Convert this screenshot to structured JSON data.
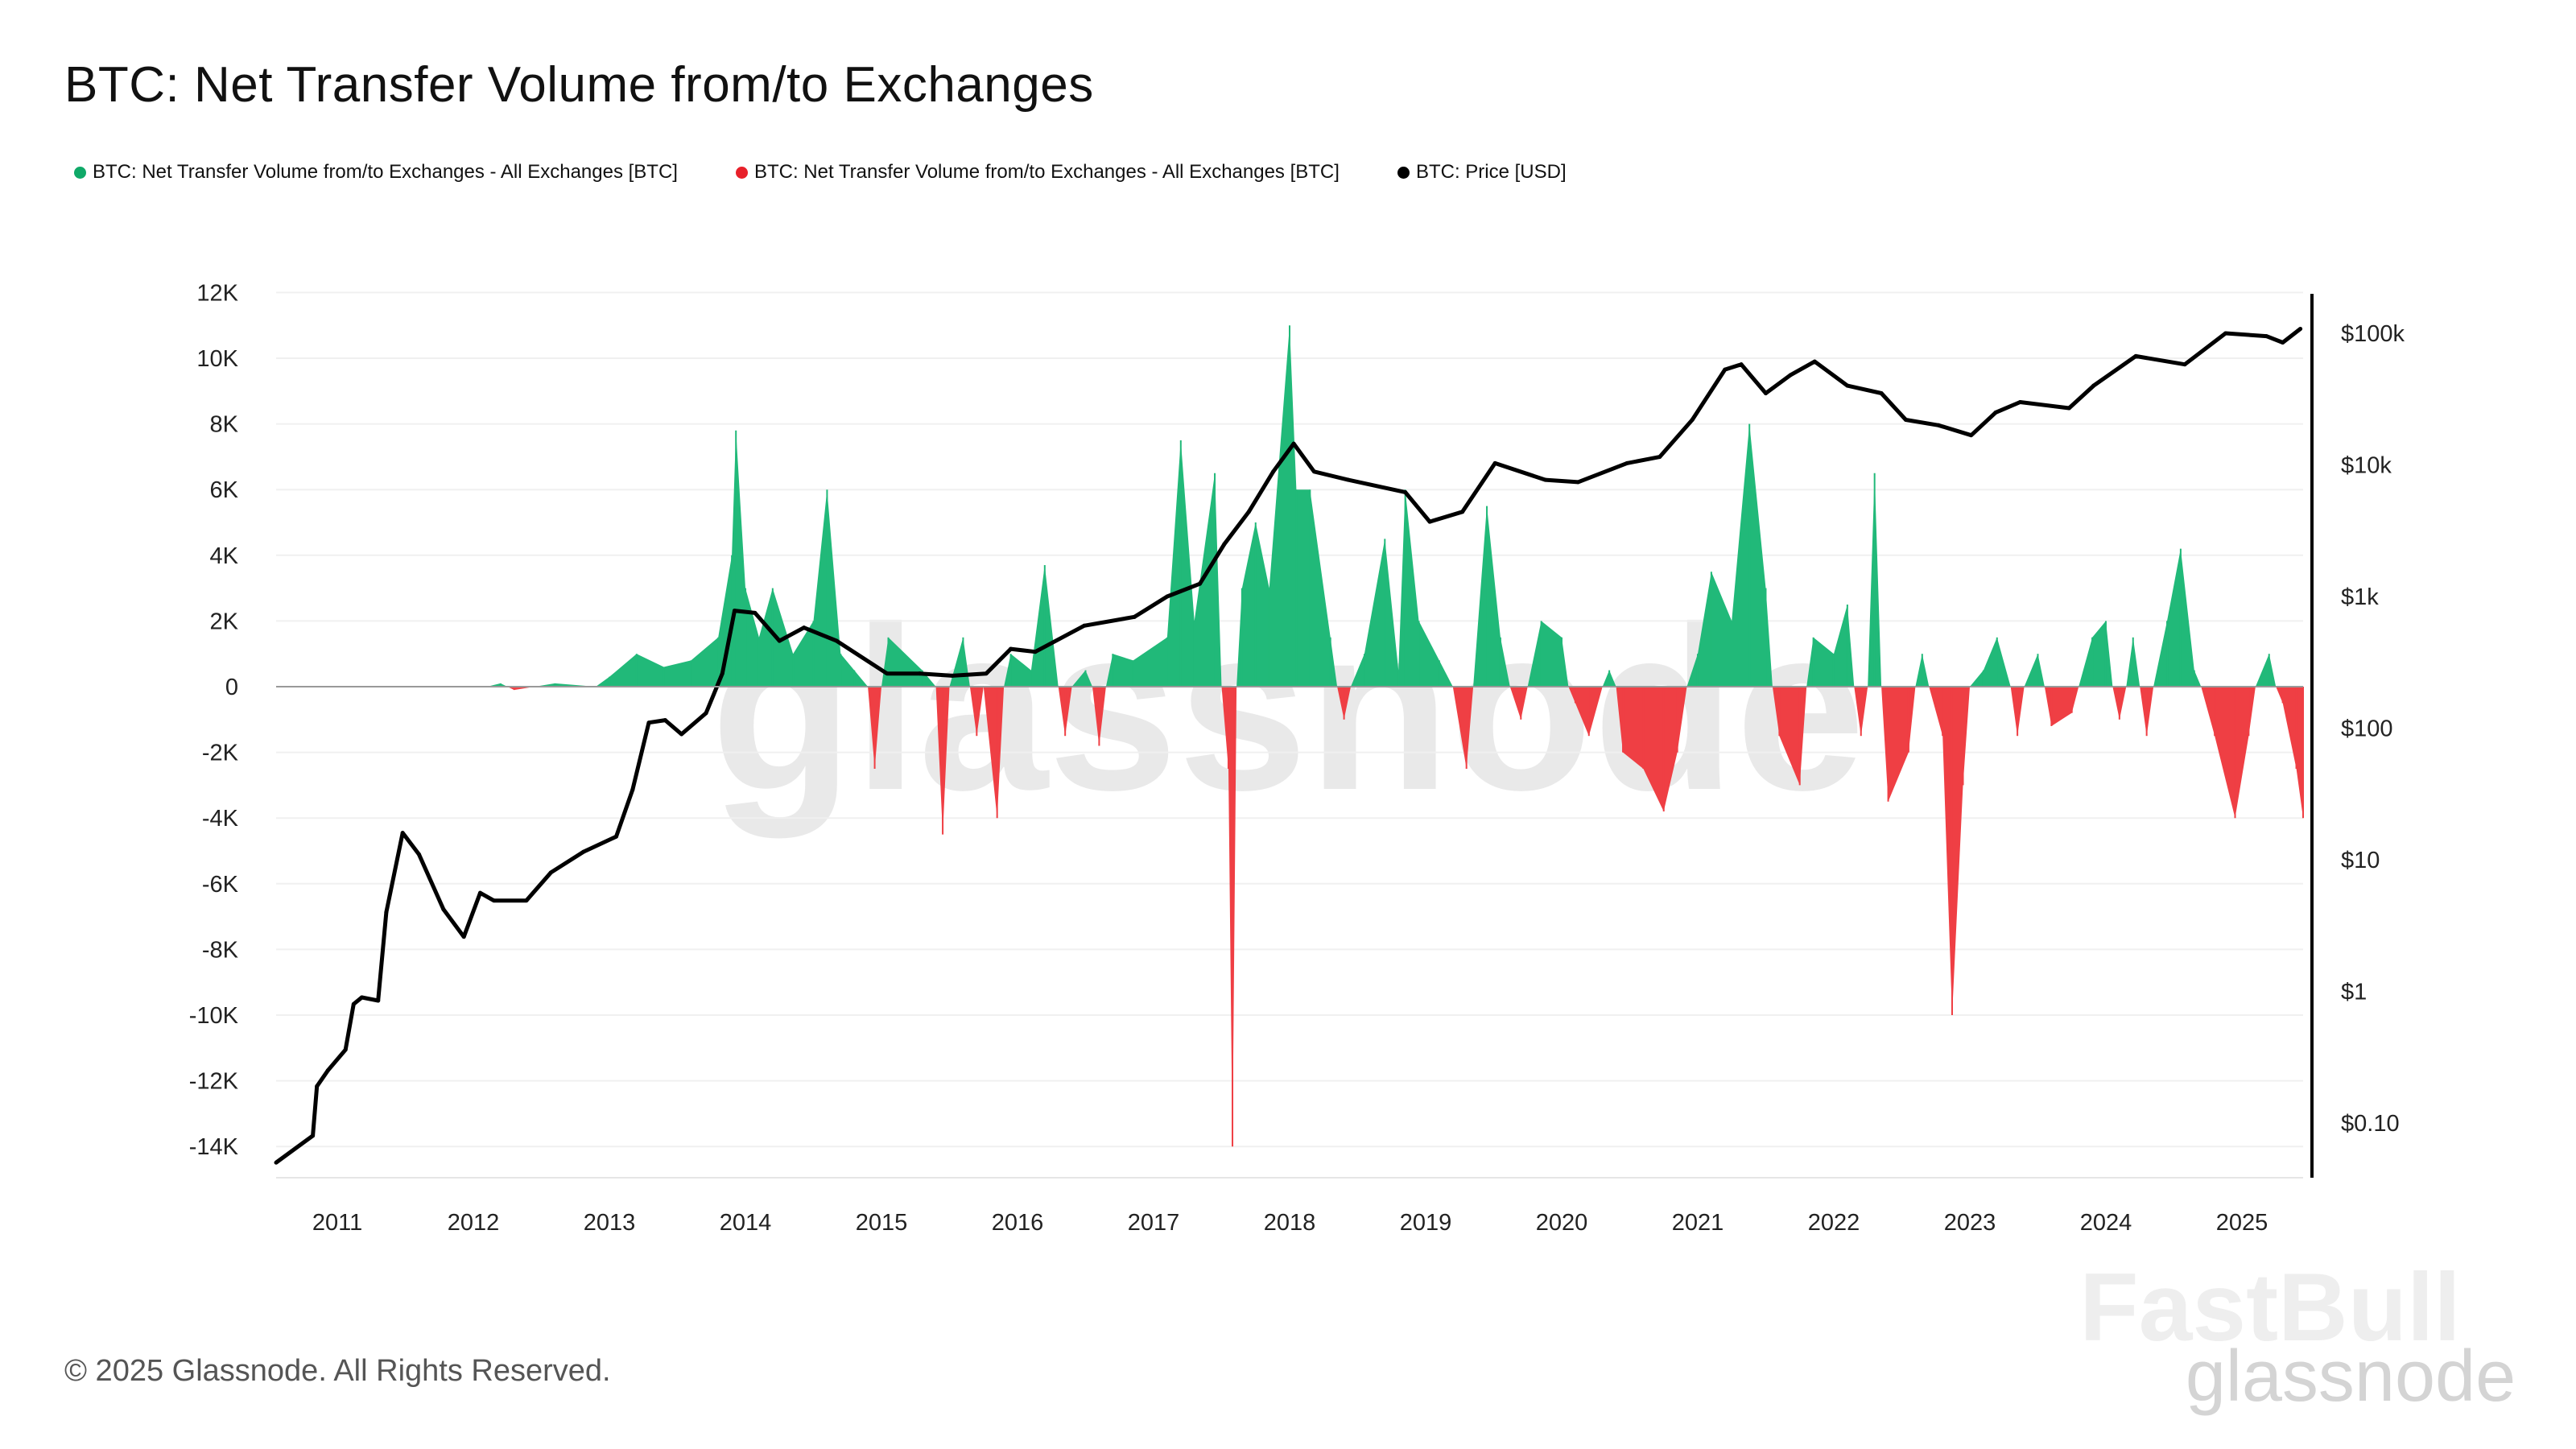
{
  "title": "BTC: Net Transfer Volume from/to Exchanges",
  "footer": "© 2025 Glassnode. All Rights Reserved.",
  "watermark": "glassnode",
  "watermark2": "FastBull",
  "colors": {
    "inflow": "#21b979",
    "outflow": "#ef3f44",
    "price": "#000000"
  },
  "chart_data": {
    "type": "area",
    "title": "BTC: Net Transfer Volume from/to Exchanges",
    "legend_position": "top-left",
    "grid": true,
    "legend": [
      {
        "label": "BTC: Net Transfer Volume from/to Exchanges - All Exchanges [BTC]",
        "color": "#0fa968"
      },
      {
        "label": "BTC: Net Transfer Volume from/to Exchanges - All Exchanges [BTC]",
        "color": "#e8202a"
      },
      {
        "label": "BTC: Price [USD]",
        "color": "#000000"
      }
    ],
    "x_ticks": [
      "2011",
      "2012",
      "2013",
      "2014",
      "2015",
      "2016",
      "2017",
      "2018",
      "2019",
      "2020",
      "2021",
      "2022",
      "2023",
      "2024",
      "2025"
    ],
    "xlim": [
      2010.55,
      2025.45
    ],
    "y_left": {
      "ticks": [
        "12K",
        "10K",
        "8K",
        "6K",
        "4K",
        "2K",
        "0",
        "-2K",
        "-4K",
        "-6K",
        "-8K",
        "-10K",
        "-12K",
        "-14K"
      ],
      "ylim": [
        -15000,
        12000
      ]
    },
    "y_right": {
      "scale": "log",
      "ticks": [
        "$100k",
        "$10k",
        "$1k",
        "$100",
        "$10",
        "$1",
        "$0.10"
      ]
    },
    "net_flow": [
      [
        2010.55,
        0
      ],
      [
        2012.1,
        0
      ],
      [
        2012.2,
        100
      ],
      [
        2012.3,
        -100
      ],
      [
        2012.6,
        100
      ],
      [
        2012.9,
        0
      ],
      [
        2013.0,
        300
      ],
      [
        2013.2,
        1000
      ],
      [
        2013.4,
        600
      ],
      [
        2013.6,
        800
      ],
      [
        2013.8,
        1500
      ],
      [
        2013.9,
        4000
      ],
      [
        2013.93,
        7800
      ],
      [
        2014.0,
        3000
      ],
      [
        2014.1,
        1500
      ],
      [
        2014.2,
        3000
      ],
      [
        2014.35,
        1000
      ],
      [
        2014.5,
        2000
      ],
      [
        2014.6,
        6000
      ],
      [
        2014.7,
        1000
      ],
      [
        2014.8,
        500
      ],
      [
        2014.9,
        0
      ],
      [
        2014.95,
        -2500
      ],
      [
        2015.0,
        0
      ],
      [
        2015.05,
        1500
      ],
      [
        2015.3,
        500
      ],
      [
        2015.4,
        0
      ],
      [
        2015.45,
        -4500
      ],
      [
        2015.5,
        0
      ],
      [
        2015.6,
        1500
      ],
      [
        2015.65,
        0
      ],
      [
        2015.7,
        -1500
      ],
      [
        2015.75,
        0
      ],
      [
        2015.85,
        -4000
      ],
      [
        2015.9,
        0
      ],
      [
        2015.95,
        1000
      ],
      [
        2016.1,
        500
      ],
      [
        2016.2,
        3700
      ],
      [
        2016.3,
        0
      ],
      [
        2016.35,
        -1500
      ],
      [
        2016.4,
        0
      ],
      [
        2016.5,
        500
      ],
      [
        2016.55,
        0
      ],
      [
        2016.6,
        -1800
      ],
      [
        2016.65,
        0
      ],
      [
        2016.7,
        1000
      ],
      [
        2016.85,
        800
      ],
      [
        2017.1,
        1500
      ],
      [
        2017.2,
        7500
      ],
      [
        2017.3,
        2000
      ],
      [
        2017.45,
        6500
      ],
      [
        2017.5,
        0
      ],
      [
        2017.55,
        -2500
      ],
      [
        2017.58,
        -14000
      ],
      [
        2017.61,
        0
      ],
      [
        2017.65,
        3000
      ],
      [
        2017.75,
        5000
      ],
      [
        2017.85,
        3000
      ],
      [
        2018.0,
        11000
      ],
      [
        2018.05,
        6000
      ],
      [
        2018.15,
        6000
      ],
      [
        2018.3,
        1500
      ],
      [
        2018.35,
        0
      ],
      [
        2018.4,
        -1000
      ],
      [
        2018.45,
        0
      ],
      [
        2018.55,
        1000
      ],
      [
        2018.7,
        4500
      ],
      [
        2018.8,
        500
      ],
      [
        2018.85,
        6000
      ],
      [
        2018.95,
        2000
      ],
      [
        2019.1,
        800
      ],
      [
        2019.2,
        0
      ],
      [
        2019.3,
        -2500
      ],
      [
        2019.35,
        0
      ],
      [
        2019.45,
        5500
      ],
      [
        2019.55,
        1500
      ],
      [
        2019.62,
        0
      ],
      [
        2019.7,
        -1000
      ],
      [
        2019.75,
        0
      ],
      [
        2019.85,
        2000
      ],
      [
        2020.0,
        1500
      ],
      [
        2020.05,
        0
      ],
      [
        2020.1,
        -500
      ],
      [
        2020.2,
        -1500
      ],
      [
        2020.3,
        0
      ],
      [
        2020.35,
        500
      ],
      [
        2020.4,
        0
      ],
      [
        2020.45,
        -2000
      ],
      [
        2020.6,
        -2500
      ],
      [
        2020.75,
        -3800
      ],
      [
        2020.85,
        -2000
      ],
      [
        2020.92,
        0
      ],
      [
        2021.0,
        1000
      ],
      [
        2021.1,
        3500
      ],
      [
        2021.25,
        2000
      ],
      [
        2021.38,
        8000
      ],
      [
        2021.5,
        3000
      ],
      [
        2021.55,
        0
      ],
      [
        2021.6,
        -1500
      ],
      [
        2021.75,
        -3000
      ],
      [
        2021.8,
        0
      ],
      [
        2021.85,
        1500
      ],
      [
        2022.0,
        1000
      ],
      [
        2022.1,
        2500
      ],
      [
        2022.15,
        0
      ],
      [
        2022.2,
        -1500
      ],
      [
        2022.25,
        0
      ],
      [
        2022.3,
        6500
      ],
      [
        2022.35,
        0
      ],
      [
        2022.4,
        -3500
      ],
      [
        2022.55,
        -2000
      ],
      [
        2022.6,
        0
      ],
      [
        2022.65,
        1000
      ],
      [
        2022.7,
        0
      ],
      [
        2022.8,
        -1500
      ],
      [
        2022.87,
        -10000
      ],
      [
        2022.95,
        -3000
      ],
      [
        2023.0,
        0
      ],
      [
        2023.1,
        500
      ],
      [
        2023.2,
        1500
      ],
      [
        2023.3,
        0
      ],
      [
        2023.35,
        -1500
      ],
      [
        2023.4,
        0
      ],
      [
        2023.5,
        1000
      ],
      [
        2023.55,
        0
      ],
      [
        2023.6,
        -1200
      ],
      [
        2023.75,
        -800
      ],
      [
        2023.8,
        0
      ],
      [
        2023.9,
        1500
      ],
      [
        2024.0,
        2000
      ],
      [
        2024.05,
        0
      ],
      [
        2024.1,
        -1000
      ],
      [
        2024.15,
        0
      ],
      [
        2024.2,
        1500
      ],
      [
        2024.25,
        0
      ],
      [
        2024.3,
        -1500
      ],
      [
        2024.35,
        0
      ],
      [
        2024.45,
        2000
      ],
      [
        2024.55,
        4200
      ],
      [
        2024.65,
        500
      ],
      [
        2024.7,
        0
      ],
      [
        2024.8,
        -1500
      ],
      [
        2024.95,
        -4000
      ],
      [
        2025.05,
        -1500
      ],
      [
        2025.1,
        0
      ],
      [
        2025.2,
        1000
      ],
      [
        2025.25,
        0
      ],
      [
        2025.3,
        -500
      ],
      [
        2025.4,
        -2500
      ],
      [
        2025.45,
        -4000
      ]
    ],
    "price": [
      [
        2010.55,
        0.05
      ],
      [
        2010.82,
        0.08
      ],
      [
        2010.85,
        0.19
      ],
      [
        2010.93,
        0.25
      ],
      [
        2011.06,
        0.36
      ],
      [
        2011.12,
        0.8
      ],
      [
        2011.18,
        0.9
      ],
      [
        2011.3,
        0.85
      ],
      [
        2011.36,
        4
      ],
      [
        2011.48,
        16
      ],
      [
        2011.6,
        11
      ],
      [
        2011.78,
        4.2
      ],
      [
        2011.93,
        2.6
      ],
      [
        2012.05,
        5.6
      ],
      [
        2012.15,
        4.9
      ],
      [
        2012.39,
        4.9
      ],
      [
        2012.57,
        8
      ],
      [
        2012.81,
        11.5
      ],
      [
        2013.05,
        15
      ],
      [
        2013.17,
        34
      ],
      [
        2013.29,
        110
      ],
      [
        2013.41,
        115
      ],
      [
        2013.53,
        90
      ],
      [
        2013.71,
        130
      ],
      [
        2013.83,
        260
      ],
      [
        2013.92,
        780
      ],
      [
        2014.07,
        750
      ],
      [
        2014.25,
        460
      ],
      [
        2014.43,
        580
      ],
      [
        2014.67,
        460
      ],
      [
        2015.04,
        260
      ],
      [
        2015.28,
        260
      ],
      [
        2015.52,
        250
      ],
      [
        2015.77,
        260
      ],
      [
        2015.95,
        400
      ],
      [
        2016.13,
        380
      ],
      [
        2016.49,
        600
      ],
      [
        2016.86,
        700
      ],
      [
        2017.1,
        1000
      ],
      [
        2017.34,
        1250
      ],
      [
        2017.52,
        2500
      ],
      [
        2017.7,
        4400
      ],
      [
        2017.88,
        8900
      ],
      [
        2018.03,
        14500
      ],
      [
        2018.18,
        8900
      ],
      [
        2018.43,
        7700
      ],
      [
        2018.85,
        6200
      ],
      [
        2019.03,
        3700
      ],
      [
        2019.27,
        4400
      ],
      [
        2019.51,
        10300
      ],
      [
        2019.88,
        7700
      ],
      [
        2020.12,
        7400
      ],
      [
        2020.48,
        10300
      ],
      [
        2020.72,
        11500
      ],
      [
        2020.96,
        22000
      ],
      [
        2021.2,
        53000
      ],
      [
        2021.32,
        58000
      ],
      [
        2021.5,
        35000
      ],
      [
        2021.68,
        48000
      ],
      [
        2021.86,
        61000
      ],
      [
        2022.1,
        40000
      ],
      [
        2022.35,
        35000
      ],
      [
        2022.53,
        22000
      ],
      [
        2022.77,
        20000
      ],
      [
        2023.01,
        16800
      ],
      [
        2023.19,
        25000
      ],
      [
        2023.37,
        30000
      ],
      [
        2023.73,
        27000
      ],
      [
        2023.91,
        40000
      ],
      [
        2024.22,
        67000
      ],
      [
        2024.58,
        58000
      ],
      [
        2024.88,
        100000
      ],
      [
        2025.18,
        95000
      ],
      [
        2025.3,
        85000
      ],
      [
        2025.43,
        108000
      ]
    ]
  }
}
